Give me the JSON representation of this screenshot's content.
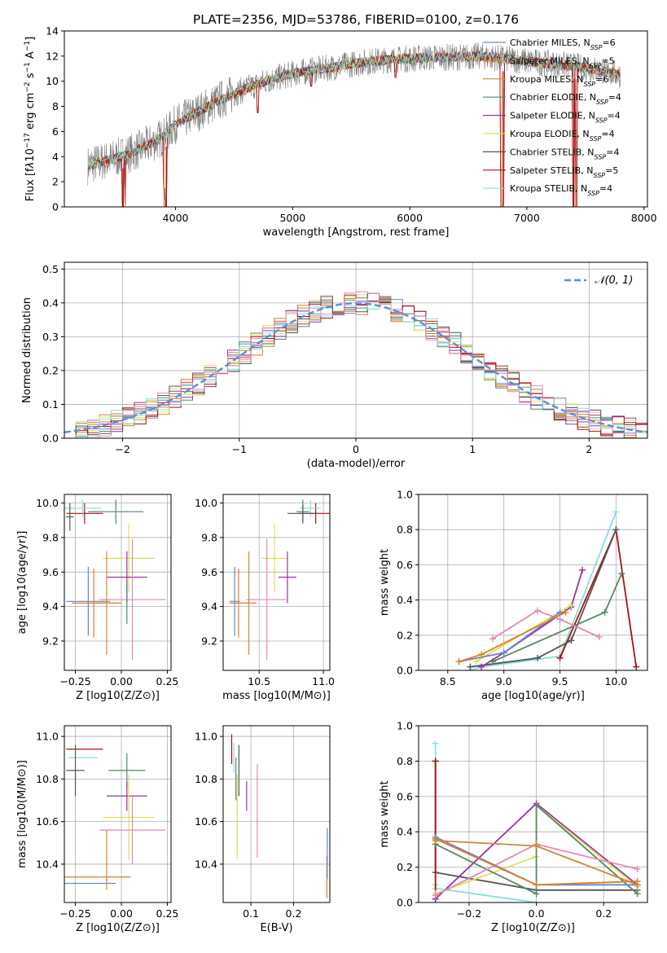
{
  "figure_title": "PLATE=2356, MJD=53786, FIBERID=0100, z=0.176",
  "colors": {
    "Chabrier MILES": "#6688cc",
    "Salpeter MILES": "#e07b2a",
    "Kroupa MILES": "#cc8833",
    "Chabrier ELODIE": "#558866",
    "Salpeter ELODIE": "#9933aa",
    "Kroupa ELODIE": "#dde055",
    "Chabrier STELIB": "#555555",
    "Salpeter STELIB": "#aa1111",
    "Kroupa STELIB": "#88dde0",
    "data": "#808080",
    "pink": "#e088bb",
    "normal": "#5b8fd6"
  },
  "chart_data": [
    {
      "id": "spectrum",
      "type": "line",
      "title": "PLATE=2356, MJD=53786, FIBERID=0100, z=0.176",
      "xlabel": "wavelength [Angstrom, rest frame]",
      "ylabel_html": "Flux [f<tspan font-style='italic'>λ</tspan>10<tspan baseline-shift='super' font-size='9'>−17</tspan> erg cm<tspan baseline-shift='super' font-size='9'>−2</tspan> s<tspan baseline-shift='super' font-size='9'>−1</tspan> A<tspan baseline-shift='super' font-size='9'>−1</tspan>]",
      "xlim": [
        3050,
        8030
      ],
      "ylim": [
        0,
        14
      ],
      "xticks": [
        4000,
        5000,
        6000,
        7000,
        8000
      ],
      "yticks": [
        0,
        2,
        4,
        6,
        8,
        10,
        12,
        14
      ],
      "grid": false,
      "legend_position": "top-right",
      "legend": [
        {
          "label": "Chabrier MILES, N",
          "sub": "SSP",
          "tail": "=6"
        },
        {
          "label": "Salpeter MILES, N",
          "sub": "SSP",
          "tail": "=5"
        },
        {
          "label": "Kroupa MILES, N",
          "sub": "SSP",
          "tail": "=6"
        },
        {
          "label": "Chabrier ELODIE, N",
          "sub": "SSP",
          "tail": "=4"
        },
        {
          "label": "Salpeter ELODIE, N",
          "sub": "SSP",
          "tail": "=4"
        },
        {
          "label": "Kroupa ELODIE, N",
          "sub": "SSP",
          "tail": "=4"
        },
        {
          "label": "Chabrier STELIB, N",
          "sub": "SSP",
          "tail": "=4"
        },
        {
          "label": "Salpeter STELIB, N",
          "sub": "SSP",
          "tail": "=5"
        },
        {
          "label": "Kroupa STELIB, N",
          "sub": "SSP",
          "tail": "=4"
        }
      ],
      "continuum": [
        [
          3250,
          3.3
        ],
        [
          3500,
          3.9
        ],
        [
          3700,
          4.6
        ],
        [
          3900,
          5.6
        ],
        [
          4000,
          6.6
        ],
        [
          4200,
          7.6
        ],
        [
          4400,
          8.6
        ],
        [
          4600,
          9.4
        ],
        [
          4800,
          10.1
        ],
        [
          5000,
          10.6
        ],
        [
          5200,
          10.9
        ],
        [
          5400,
          11.2
        ],
        [
          5600,
          11.5
        ],
        [
          5800,
          11.7
        ],
        [
          6000,
          11.8
        ],
        [
          6200,
          11.9
        ],
        [
          6400,
          11.9
        ],
        [
          6600,
          12.0
        ],
        [
          6800,
          11.8
        ],
        [
          7000,
          11.6
        ],
        [
          7200,
          11.4
        ],
        [
          7400,
          11.2
        ],
        [
          7600,
          10.9
        ],
        [
          7800,
          10.5
        ]
      ],
      "dips": [
        [
          3550,
          0
        ],
        [
          3570,
          0.2
        ],
        [
          3900,
          1.5
        ],
        [
          3920,
          0
        ],
        [
          4700,
          7.5
        ],
        [
          5160,
          9.6
        ],
        [
          5880,
          10.3
        ],
        [
          6780,
          0
        ],
        [
          6800,
          0.2
        ],
        [
          7400,
          0
        ],
        [
          7420,
          0
        ]
      ]
    },
    {
      "id": "residuals",
      "type": "histogram",
      "xlabel": "(data-model)/error",
      "ylabel": "Normed distribution",
      "xlim": [
        -2.5,
        2.5
      ],
      "ylim": [
        0,
        0.52
      ],
      "xticks": [
        -2,
        -1,
        0,
        1,
        2
      ],
      "yticks": [
        0.0,
        0.1,
        0.2,
        0.3,
        0.4,
        0.5
      ],
      "xtick_labels": [
        "−2",
        "−1",
        "0",
        "1",
        "2"
      ],
      "ytick_labels": [
        "0.0",
        "0.1",
        "0.2",
        "0.3",
        "0.4",
        "0.5"
      ],
      "grid": true,
      "legend_position": "top-right",
      "legend": [
        {
          "label": "N(0,1)"
        }
      ],
      "bin_width": 0.1
    },
    {
      "id": "age-vs-Z",
      "type": "errorbar",
      "xlabel": "Z [log10(Z/Z⊙)]",
      "ylabel": "age  [log10(age/yr)]",
      "xlim": [
        -0.31,
        0.27
      ],
      "ylim": [
        9.03,
        10.05
      ],
      "xticks": [
        -0.25,
        0.0,
        0.25
      ],
      "xtick_labels": [
        "−0.25",
        "0.00",
        "0.25"
      ],
      "yticks": [
        9.2,
        9.4,
        9.6,
        9.8,
        10.0
      ],
      "ytick_labels": [
        "9.2",
        "9.4",
        "9.6",
        "9.8",
        "10.0"
      ],
      "grid": true,
      "points": [
        {
          "c": "Salpeter STELIB",
          "x": -0.2,
          "xe": 0.1,
          "y": 9.94,
          "ye": 0.06
        },
        {
          "c": "Kroupa STELIB",
          "x": -0.21,
          "xe": 0.1,
          "y": 9.97,
          "ye": 0.05
        },
        {
          "c": "Chabrier ELODIE",
          "x": -0.03,
          "xe": 0.15,
          "y": 9.95,
          "ye": 0.07
        },
        {
          "c": "Chabrier STELIB",
          "x": -0.28,
          "xe": 0.02,
          "y": 9.92,
          "ye": 0.08
        },
        {
          "c": "Kroupa ELODIE",
          "x": 0.04,
          "xe": 0.14,
          "y": 9.68,
          "ye": 0.2
        },
        {
          "c": "Salpeter ELODIE",
          "x": 0.03,
          "xe": 0.11,
          "y": 9.57,
          "ye": 0.15
        },
        {
          "c": "pink",
          "x": 0.06,
          "xe": 0.18,
          "y": 9.44,
          "ye": 0.35
        },
        {
          "c": "Chabrier MILES",
          "x": -0.18,
          "xe": 0.12,
          "y": 9.43,
          "ye": 0.2
        },
        {
          "c": "Salpeter MILES",
          "x": -0.15,
          "xe": 0.12,
          "y": 9.42,
          "ye": 0.2
        },
        {
          "c": "Kroupa MILES",
          "x": -0.08,
          "xe": 0.08,
          "y": 9.42,
          "ye": 0.3
        },
        {
          "c": "Chabrier ELODIE",
          "x": 0.03,
          "xe": 0.0,
          "y": 9.42,
          "ye": 0.12
        }
      ]
    },
    {
      "id": "age-vs-mass",
      "type": "errorbar",
      "xlabel": "mass [log10(M/M⊙)]",
      "ylabel": "",
      "xlim": [
        10.22,
        11.05
      ],
      "ylim": [
        9.03,
        10.05
      ],
      "xticks": [
        10.5,
        11.0
      ],
      "xtick_labels": [
        "10.5",
        "11.0"
      ],
      "yticks": [
        9.2,
        9.4,
        9.6,
        9.8,
        10.0
      ],
      "ytick_labels": [
        "9.2",
        "9.4",
        "9.6",
        "9.8",
        "10.0"
      ],
      "grid": true,
      "points": [
        {
          "c": "Salpeter STELIB",
          "x": 10.94,
          "xe": 0.13,
          "y": 9.94,
          "ye": 0.06
        },
        {
          "c": "Kroupa STELIB",
          "x": 10.9,
          "xe": 0.08,
          "y": 9.97,
          "ye": 0.05
        },
        {
          "c": "Chabrier ELODIE",
          "x": 10.84,
          "xe": 0.05,
          "y": 9.95,
          "ye": 0.07
        },
        {
          "c": "Chabrier STELIB",
          "x": 10.84,
          "xe": 0.12,
          "y": 9.94,
          "ye": 0.05
        },
        {
          "c": "Kroupa ELODIE",
          "x": 10.62,
          "xe": 0.1,
          "y": 9.68,
          "ye": 0.2
        },
        {
          "c": "Salpeter ELODIE",
          "x": 10.72,
          "xe": 0.07,
          "y": 9.57,
          "ye": 0.15
        },
        {
          "c": "pink",
          "x": 10.56,
          "xe": 0.16,
          "y": 9.44,
          "ye": 0.35
        },
        {
          "c": "Chabrier MILES",
          "x": 10.31,
          "xe": 0.04,
          "y": 9.43,
          "ye": 0.2
        },
        {
          "c": "Salpeter MILES",
          "x": 10.34,
          "xe": 0.07,
          "y": 9.42,
          "ye": 0.2
        },
        {
          "c": "Kroupa MILES",
          "x": 10.42,
          "xe": 0.06,
          "y": 9.42,
          "ye": 0.3
        }
      ]
    },
    {
      "id": "weight-vs-age",
      "type": "line",
      "xlabel": "age  [log10(age/yr)]",
      "ylabel": "mass weight",
      "xlim": [
        8.24,
        10.28
      ],
      "ylim": [
        0,
        1.0
      ],
      "xticks": [
        8.5,
        9.0,
        9.5,
        10.0
      ],
      "xtick_labels": [
        "8.5",
        "9.0",
        "9.5",
        "10.0"
      ],
      "yticks": [
        0.0,
        0.2,
        0.4,
        0.6,
        0.8,
        1.0
      ],
      "ytick_labels": [
        "0.0",
        "0.2",
        "0.4",
        "0.6",
        "0.8",
        "1.0"
      ],
      "grid": true,
      "series": [
        {
          "c": "Kroupa STELIB",
          "x": [
            8.7,
            8.8,
            9.5,
            10.0
          ],
          "y": [
            0.0,
            0.02,
            0.08,
            0.9
          ]
        },
        {
          "c": "Salpeter STELIB",
          "x": [
            9.5,
            10.0,
            10.18
          ],
          "y": [
            0.07,
            0.8,
            0.02
          ]
        },
        {
          "c": "Chabrier STELIB",
          "x": [
            8.7,
            9.3,
            9.6,
            10.0
          ],
          "y": [
            0.02,
            0.07,
            0.17,
            0.8
          ]
        },
        {
          "c": "Chabrier ELODIE",
          "x": [
            8.9,
            9.9,
            10.05
          ],
          "y": [
            0.05,
            0.33,
            0.55
          ]
        },
        {
          "c": "Salpeter ELODIE",
          "x": [
            8.8,
            9.0,
            9.6,
            9.7
          ],
          "y": [
            0.02,
            0.1,
            0.36,
            0.57
          ]
        },
        {
          "c": "Kroupa ELODIE",
          "x": [
            8.75,
            9.6
          ],
          "y": [
            0.05,
            0.37
          ]
        },
        {
          "c": "pink",
          "x": [
            8.9,
            9.3,
            9.5,
            9.85
          ],
          "y": [
            0.18,
            0.34,
            0.29,
            0.19
          ]
        },
        {
          "c": "Chabrier MILES",
          "x": [
            8.6,
            9.0,
            9.5
          ],
          "y": [
            0.05,
            0.1,
            0.33
          ]
        },
        {
          "c": "Salpeter MILES",
          "x": [
            8.6,
            8.8,
            9.55
          ],
          "y": [
            0.05,
            0.09,
            0.33
          ]
        }
      ]
    },
    {
      "id": "mass-vs-Z",
      "type": "errorbar",
      "xlabel": "Z [log10(Z/Z⊙)]",
      "ylabel": "mass [log10(M/M⊙)]",
      "xlim": [
        -0.31,
        0.27
      ],
      "ylim": [
        10.22,
        11.05
      ],
      "xticks": [
        -0.25,
        0.0,
        0.25
      ],
      "xtick_labels": [
        "−0.25",
        "0.00",
        "0.25"
      ],
      "yticks": [
        10.4,
        10.6,
        10.8,
        11.0
      ],
      "ytick_labels": [
        "10.4",
        "10.6",
        "10.8",
        "11.0"
      ],
      "grid": true,
      "points": [
        {
          "c": "Salpeter STELIB",
          "x": -0.2,
          "xe": 0.1,
          "y": 10.94,
          "ye": 0.0
        },
        {
          "c": "Kroupa STELIB",
          "x": -0.21,
          "xe": 0.08,
          "y": 10.9,
          "ye": 0.0
        },
        {
          "c": "Chabrier STELIB",
          "x": -0.25,
          "xe": 0.05,
          "y": 10.84,
          "ye": 0.12
        },
        {
          "c": "Chabrier ELODIE",
          "x": 0.03,
          "xe": 0.1,
          "y": 10.84,
          "ye": 0.08
        },
        {
          "c": "Salpeter ELODIE",
          "x": 0.03,
          "xe": 0.11,
          "y": 10.72,
          "ye": 0.07
        },
        {
          "c": "Kroupa ELODIE",
          "x": 0.04,
          "xe": 0.14,
          "y": 10.62,
          "ye": 0.2
        },
        {
          "c": "pink",
          "x": 0.06,
          "xe": 0.18,
          "y": 10.56,
          "ye": 0.16
        },
        {
          "c": "Salpeter MILES",
          "x": -0.15,
          "xe": 0.2,
          "y": 10.34,
          "ye": 0.0
        },
        {
          "c": "Chabrier MILES",
          "x": -0.18,
          "xe": 0.15,
          "y": 10.31,
          "ye": 0.0
        },
        {
          "c": "Kroupa MILES",
          "x": -0.08,
          "xe": 0.0,
          "y": 10.42,
          "ye": 0.14
        }
      ]
    },
    {
      "id": "mass-vs-ebv",
      "type": "errorbar",
      "xlabel": "E(B-V)",
      "ylabel": "",
      "xlim": [
        0.035,
        0.285
      ],
      "ylim": [
        10.22,
        11.05
      ],
      "xticks": [
        0.1,
        0.2
      ],
      "xtick_labels": [
        "0.1",
        "0.2"
      ],
      "yticks": [
        10.4,
        10.6,
        10.8,
        11.0
      ],
      "ytick_labels": [
        "10.4",
        "10.6",
        "10.8",
        "11.0"
      ],
      "grid": true,
      "points": [
        {
          "c": "Salpeter STELIB",
          "x": 0.055,
          "xe": 0.0,
          "y": 10.94,
          "ye": 0.07
        },
        {
          "c": "Kroupa STELIB",
          "x": 0.06,
          "xe": 0.0,
          "y": 10.9,
          "ye": 0.07
        },
        {
          "c": "Chabrier STELIB",
          "x": 0.072,
          "xe": 0.0,
          "y": 10.84,
          "ye": 0.12
        },
        {
          "c": "Chabrier ELODIE",
          "x": 0.065,
          "xe": 0.0,
          "y": 10.8,
          "ye": 0.1
        },
        {
          "c": "Kroupa ELODIE",
          "x": 0.068,
          "xe": 0.0,
          "y": 10.62,
          "ye": 0.2
        },
        {
          "c": "Salpeter ELODIE",
          "x": 0.09,
          "xe": 0.0,
          "y": 10.72,
          "ye": 0.07
        },
        {
          "c": "pink",
          "x": 0.115,
          "xe": 0.0,
          "y": 10.65,
          "ye": 0.22
        },
        {
          "c": "Salpeter MILES",
          "x": 0.278,
          "xe": 0.0,
          "y": 10.34,
          "ye": 0.1
        },
        {
          "c": "Chabrier MILES",
          "x": 0.279,
          "xe": 0.0,
          "y": 10.45,
          "ye": 0.12
        }
      ]
    },
    {
      "id": "weight-vs-Z",
      "type": "line",
      "xlabel": "Z [log10(Z/Z⊙)]",
      "ylabel": "mass weight",
      "xlim": [
        -0.35,
        0.33
      ],
      "ylim": [
        0,
        1.0
      ],
      "xticks": [
        -0.2,
        0.0,
        0.2
      ],
      "xtick_labels": [
        "−0.2",
        "0.0",
        "0.2"
      ],
      "yticks": [
        0.0,
        0.2,
        0.4,
        0.6,
        0.8,
        1.0
      ],
      "ytick_labels": [
        "0.0",
        "0.2",
        "0.4",
        "0.6",
        "0.8",
        "1.0"
      ],
      "grid": true,
      "series": [
        {
          "c": "Kroupa STELIB",
          "x": [
            -0.3,
            -0.3,
            -0.3,
            0.0
          ],
          "y": [
            0.9,
            0.1,
            0.08,
            0.0
          ]
        },
        {
          "c": "Chabrier STELIB",
          "x": [
            -0.3,
            -0.3,
            0.0,
            0.3
          ],
          "y": [
            0.8,
            0.17,
            0.07,
            0.07
          ]
        },
        {
          "c": "Salpeter STELIB",
          "x": [
            -0.3,
            -0.3
          ],
          "y": [
            0.8,
            0.02
          ]
        },
        {
          "c": "Salpeter ELODIE",
          "x": [
            -0.3,
            0.0,
            0.3
          ],
          "y": [
            0.02,
            0.56,
            0.1
          ]
        },
        {
          "c": "Kroupa ELODIE",
          "x": [
            -0.3,
            0.0,
            0.0,
            0.3
          ],
          "y": [
            0.05,
            0.26,
            0.55,
            0.09
          ]
        },
        {
          "c": "Chabrier ELODIE",
          "x": [
            -0.3,
            0.0,
            0.0,
            0.3
          ],
          "y": [
            0.33,
            0.05,
            0.55,
            0.05
          ]
        },
        {
          "c": "pink",
          "x": [
            -0.3,
            0.0,
            0.3
          ],
          "y": [
            0.04,
            0.33,
            0.19
          ]
        },
        {
          "c": "Chabrier MILES",
          "x": [
            -0.3,
            0.0,
            0.3
          ],
          "y": [
            0.37,
            0.1,
            0.1
          ]
        },
        {
          "c": "Salpeter MILES",
          "x": [
            -0.3,
            0.0,
            0.3
          ],
          "y": [
            0.36,
            0.1,
            0.12
          ]
        },
        {
          "c": "Kroupa MILES",
          "x": [
            -0.3,
            0.0,
            0.3
          ],
          "y": [
            0.35,
            0.32,
            0.1
          ]
        }
      ]
    }
  ]
}
